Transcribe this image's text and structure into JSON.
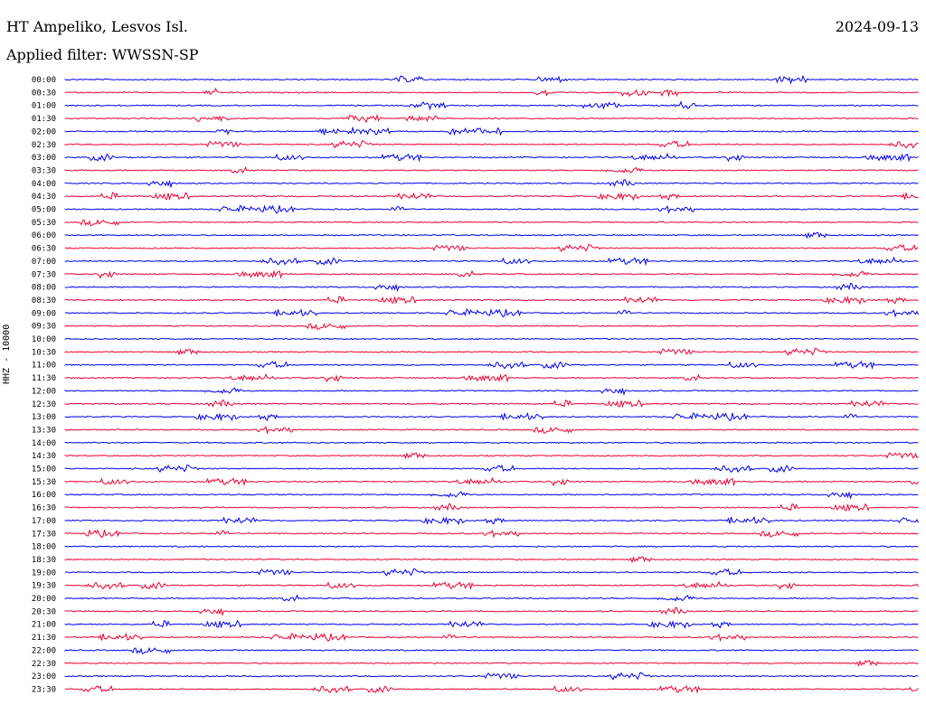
{
  "header": {
    "station": "HT Ampeliko, Lesvos Isl.",
    "date": "2024-09-13",
    "filter": "Applied filter: WWSSN-SP"
  },
  "axis": {
    "ylabel": "HHZ - 10000"
  },
  "colors": {
    "even_trace": "#0000ee",
    "odd_trace": "#ee0033"
  },
  "time_labels": [
    "00:00",
    "00:30",
    "01:00",
    "01:30",
    "02:00",
    "02:30",
    "03:00",
    "03:30",
    "04:00",
    "04:30",
    "05:00",
    "05:30",
    "06:00",
    "06:30",
    "07:00",
    "07:30",
    "08:00",
    "08:30",
    "09:00",
    "09:30",
    "10:00",
    "10:30",
    "11:00",
    "11:30",
    "12:00",
    "12:30",
    "13:00",
    "13:30",
    "14:00",
    "14:30",
    "15:00",
    "15:30",
    "16:00",
    "16:30",
    "17:00",
    "17:30",
    "18:00",
    "18:30",
    "19:00",
    "19:30",
    "20:00",
    "20:30",
    "21:00",
    "21:30",
    "22:00",
    "22:30",
    "23:00",
    "23:30"
  ]
}
